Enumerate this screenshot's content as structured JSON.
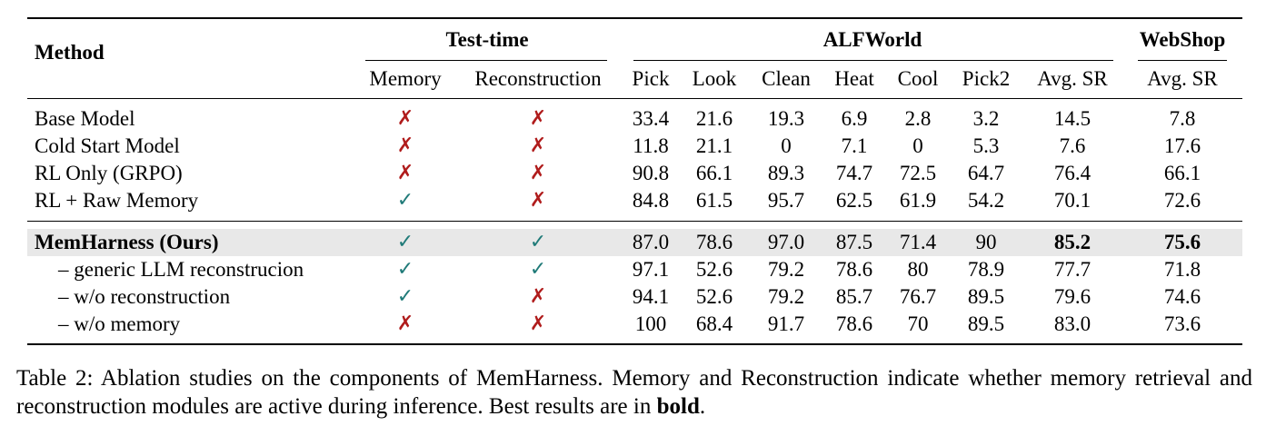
{
  "table": {
    "headers": {
      "method": "Method",
      "test_time": "Test-time",
      "alfworld": "ALFWorld",
      "webshop": "WebShop",
      "sub": [
        "Memory",
        "Reconstruction",
        "Pick",
        "Look",
        "Clean",
        "Heat",
        "Cool",
        "Pick2",
        "Avg. SR",
        "Avg. SR"
      ]
    },
    "marks": {
      "yes": "✓",
      "no": "✗",
      "yes_color": "#1f7a78",
      "no_color": "#b01c1c"
    },
    "highlight_color": "#e8e8e8",
    "rows": [
      {
        "name": "Base Model",
        "memory": false,
        "reconstruction": false,
        "values": [
          "33.4",
          "21.6",
          "19.3",
          "6.9",
          "2.8",
          "3.2",
          "14.5",
          "7.8"
        ]
      },
      {
        "name": "Cold Start Model",
        "memory": false,
        "reconstruction": false,
        "values": [
          "11.8",
          "21.1",
          "0",
          "7.1",
          "0",
          "5.3",
          "7.6",
          "17.6"
        ]
      },
      {
        "name": "RL Only (GRPO)",
        "memory": false,
        "reconstruction": false,
        "values": [
          "90.8",
          "66.1",
          "89.3",
          "74.7",
          "72.5",
          "64.7",
          "76.4",
          "66.1"
        ]
      },
      {
        "name": "RL + Raw Memory",
        "memory": true,
        "reconstruction": false,
        "values": [
          "84.8",
          "61.5",
          "95.7",
          "62.5",
          "61.9",
          "54.2",
          "70.1",
          "72.6"
        ]
      },
      {
        "name": "MemHarness (Ours)",
        "memory": true,
        "reconstruction": true,
        "values": [
          "87.0",
          "78.6",
          "97.0",
          "87.5",
          "71.4",
          "90",
          "85.2",
          "75.6"
        ],
        "bold_name": true,
        "bold_cols": [
          6,
          7
        ],
        "highlight": true
      },
      {
        "name": "– generic LLM reconstrucion",
        "memory": true,
        "reconstruction": true,
        "values": [
          "97.1",
          "52.6",
          "79.2",
          "78.6",
          "80",
          "78.9",
          "77.7",
          "71.8"
        ],
        "indent": true
      },
      {
        "name": "– w/o reconstruction",
        "memory": true,
        "reconstruction": false,
        "values": [
          "94.1",
          "52.6",
          "79.2",
          "85.7",
          "76.7",
          "89.5",
          "79.6",
          "74.6"
        ],
        "indent": true
      },
      {
        "name": "– w/o memory",
        "memory": false,
        "reconstruction": false,
        "values": [
          "100",
          "68.4",
          "91.7",
          "78.6",
          "70",
          "89.5",
          "83.0",
          "73.6"
        ],
        "indent": true
      }
    ]
  },
  "caption": {
    "label": "Table 2:",
    "text": "Ablation studies on the components of MemHarness. Memory and Reconstruction indicate whether memory retrieval and reconstruction modules are active during inference. Best results are in",
    "bold_word": "bold",
    "end": "."
  }
}
